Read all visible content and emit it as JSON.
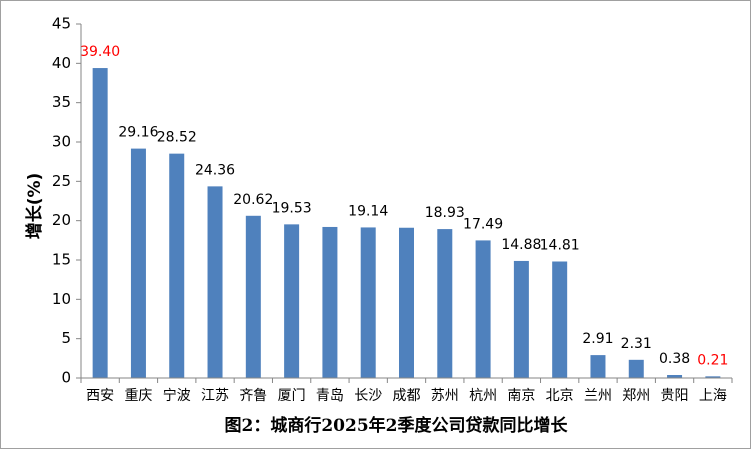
{
  "chart_data": {
    "type": "bar",
    "title": "",
    "caption": "图2：城商行2025年2季度公司贷款同比增长",
    "xlabel": "",
    "ylabel": "增长(%)",
    "ylim": [
      0,
      45
    ],
    "yticks": [
      "0",
      "5",
      "10",
      "15",
      "20",
      "25",
      "30",
      "35",
      "40",
      "45"
    ],
    "grid": false,
    "legend": "none",
    "categories": [
      "西安",
      "重庆",
      "宁波",
      "江苏",
      "齐鲁",
      "厦门",
      "青岛",
      "长沙",
      "成都",
      "苏州",
      "杭州",
      "南京",
      "北京",
      "兰州",
      "郑州",
      "贵阳",
      "上海"
    ],
    "values": [
      39.4,
      29.16,
      28.52,
      24.36,
      20.62,
      19.53,
      19.2,
      19.14,
      19.1,
      18.93,
      17.49,
      14.88,
      14.81,
      2.91,
      2.31,
      0.38,
      0.21
    ],
    "data_labels": [
      "39.40",
      "29.16",
      "28.52",
      "24.36",
      "20.62",
      "19.53",
      "",
      "19.14",
      "",
      "18.93",
      "17.49",
      "14.88",
      "14.81",
      "2.91",
      "2.31",
      "0.38",
      "0.21"
    ],
    "colors": {
      "bar": "#4f81bd",
      "axis": "#868686",
      "label": "#000000",
      "highlight": "#ff0000"
    },
    "highlight_labels": [
      "39.40",
      "0.21"
    ]
  }
}
